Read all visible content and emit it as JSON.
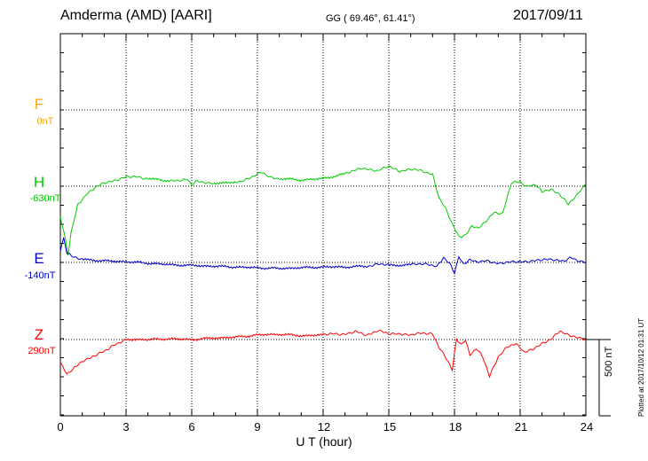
{
  "header": {
    "station": "Amderma (AMD)  [AARI]",
    "coords": "GG ( 69.46°,  61.41°)",
    "date": "2017/09/11"
  },
  "components": [
    {
      "letter": "F",
      "base": "0nT",
      "color": "#ffa500"
    },
    {
      "letter": "H",
      "base": "-630nT",
      "color": "#00cc00"
    },
    {
      "letter": "E",
      "base": "-140nT",
      "color": "#0000cc"
    },
    {
      "letter": "Z",
      "base": "290nT",
      "color": "#ff0000"
    }
  ],
  "axis": {
    "xlabel": "U T (hour)",
    "xticks": [
      "0",
      "3",
      "6",
      "9",
      "12",
      "15",
      "18",
      "21",
      "24"
    ],
    "scale_label": "500 nT",
    "plotted": "Plotted at 2017/10/12 01:31  UT"
  },
  "chart_data": {
    "type": "line",
    "xlabel": "U T (hour)",
    "xlim": [
      0,
      24
    ],
    "x_tick_step": 3,
    "grid": true,
    "scale_bar_nT": 500,
    "series": [
      {
        "name": "H",
        "color": "#00cc00",
        "x": [
          0,
          0.2,
          0.35,
          0.5,
          0.8,
          1.2,
          1.6,
          2.0,
          2.5,
          3.0,
          3.5,
          4.0,
          5.0,
          5.8,
          6.0,
          6.2,
          7.0,
          8.0,
          8.6,
          9.2,
          9.6,
          10.0,
          11.0,
          12.0,
          13.0,
          13.8,
          14.5,
          15.0,
          15.5,
          16.0,
          16.5,
          17.0,
          17.3,
          17.6,
          17.9,
          18.2,
          18.5,
          18.8,
          19.1,
          19.5,
          19.8,
          20.2,
          20.6,
          21.0,
          21.3,
          21.7,
          22.0,
          22.4,
          22.8,
          23.2,
          23.6,
          24.0
        ],
        "y": [
          -200,
          -330,
          -450,
          -300,
          -120,
          -50,
          -10,
          20,
          40,
          60,
          60,
          50,
          35,
          45,
          5,
          30,
          20,
          25,
          50,
          90,
          60,
          50,
          40,
          50,
          80,
          120,
          100,
          130,
          100,
          110,
          100,
          80,
          -80,
          -150,
          -250,
          -330,
          -320,
          -260,
          -280,
          -220,
          -170,
          -180,
          20,
          30,
          0,
          10,
          -40,
          -20,
          -50,
          -120,
          -60,
          20
        ]
      },
      {
        "name": "E",
        "color": "#0000cc",
        "x": [
          0,
          0.15,
          0.3,
          0.5,
          1.0,
          2.0,
          3.0,
          4.0,
          5.0,
          6.0,
          7.0,
          8.0,
          9.0,
          10.0,
          11.0,
          12.0,
          13.0,
          14.0,
          14.5,
          15.0,
          16.0,
          16.8,
          17.2,
          17.5,
          17.8,
          18.0,
          18.2,
          18.4,
          18.7,
          19.0,
          19.5,
          20.0,
          20.5,
          21.0,
          21.5,
          22.0,
          22.5,
          23.0,
          23.3,
          23.6,
          24.0
        ],
        "y": [
          80,
          160,
          60,
          40,
          20,
          10,
          5,
          -5,
          -15,
          -20,
          -25,
          -30,
          -35,
          -40,
          -35,
          -30,
          -30,
          -25,
          -10,
          -20,
          -15,
          -10,
          -25,
          30,
          -15,
          -70,
          40,
          -10,
          20,
          0,
          10,
          -5,
          0,
          5,
          10,
          15,
          20,
          10,
          30,
          10,
          0
        ]
      },
      {
        "name": "Z",
        "color": "#ff0000",
        "x": [
          0,
          0.3,
          0.7,
          1.0,
          1.5,
          2.0,
          2.5,
          3.0,
          4.0,
          5.0,
          6.0,
          7.0,
          8.0,
          9.0,
          10.0,
          11.0,
          12.0,
          12.5,
          13.0,
          13.5,
          14.0,
          14.5,
          15.0,
          15.5,
          16.0,
          16.5,
          17.0,
          17.3,
          17.6,
          17.9,
          18.0,
          18.1,
          18.3,
          18.5,
          18.7,
          19.0,
          19.3,
          19.6,
          20.0,
          20.4,
          20.8,
          21.2,
          21.6,
          22.0,
          22.4,
          22.8,
          23.2,
          23.6,
          24.0
        ],
        "y": [
          -150,
          -230,
          -180,
          -140,
          -110,
          -80,
          -30,
          0,
          0,
          5,
          0,
          10,
          15,
          30,
          35,
          25,
          30,
          40,
          35,
          50,
          30,
          60,
          35,
          40,
          30,
          40,
          40,
          -50,
          -120,
          -200,
          -90,
          0,
          -30,
          0,
          -100,
          -60,
          -120,
          -240,
          -110,
          -50,
          -30,
          -80,
          -60,
          -30,
          0,
          60,
          30,
          10,
          0
        ]
      }
    ]
  }
}
